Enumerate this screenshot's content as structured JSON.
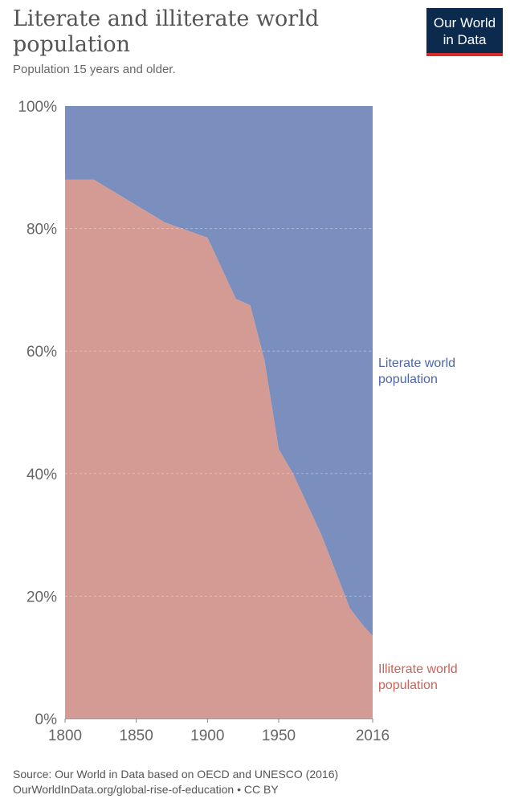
{
  "header": {
    "title": "Literate and illiterate world population",
    "subtitle": "Population 15 years and older.",
    "logo_line1": "Our World",
    "logo_line2": "in Data"
  },
  "footer": {
    "source": "Source: Our World in Data based on OECD and UNESCO (2016)",
    "url_license": "OurWorldInData.org/global-rise-of-education • CC BY"
  },
  "colors": {
    "literate": "#7a8fbe",
    "literate_label": "#4c66a8",
    "illiterate": "#d49a94",
    "illiterate_label": "#c8645a"
  },
  "chart_data": {
    "type": "area",
    "stacked": true,
    "x": [
      1800,
      1820,
      1870,
      1900,
      1920,
      1930,
      1940,
      1950,
      1960,
      1970,
      1980,
      1990,
      2000,
      2010,
      2016
    ],
    "series": [
      {
        "name": "Illiterate world population",
        "values": [
          88,
          88,
          81,
          78.5,
          68.5,
          67.5,
          58.5,
          44,
          40,
          35,
          30,
          24,
          18,
          15,
          13.5
        ]
      },
      {
        "name": "Literate world population",
        "values": [
          12,
          12,
          19,
          21.5,
          31.5,
          32.5,
          41.5,
          56,
          60,
          65,
          70,
          76,
          82,
          85,
          86.5
        ]
      }
    ],
    "xticks": [
      "1800",
      "1850",
      "1900",
      "1950",
      "2016"
    ],
    "yticks": [
      "0%",
      "20%",
      "40%",
      "60%",
      "80%",
      "100%"
    ],
    "ylim": [
      0,
      100
    ],
    "xlim": [
      1800,
      2016
    ],
    "grid": true,
    "legend": "right"
  }
}
